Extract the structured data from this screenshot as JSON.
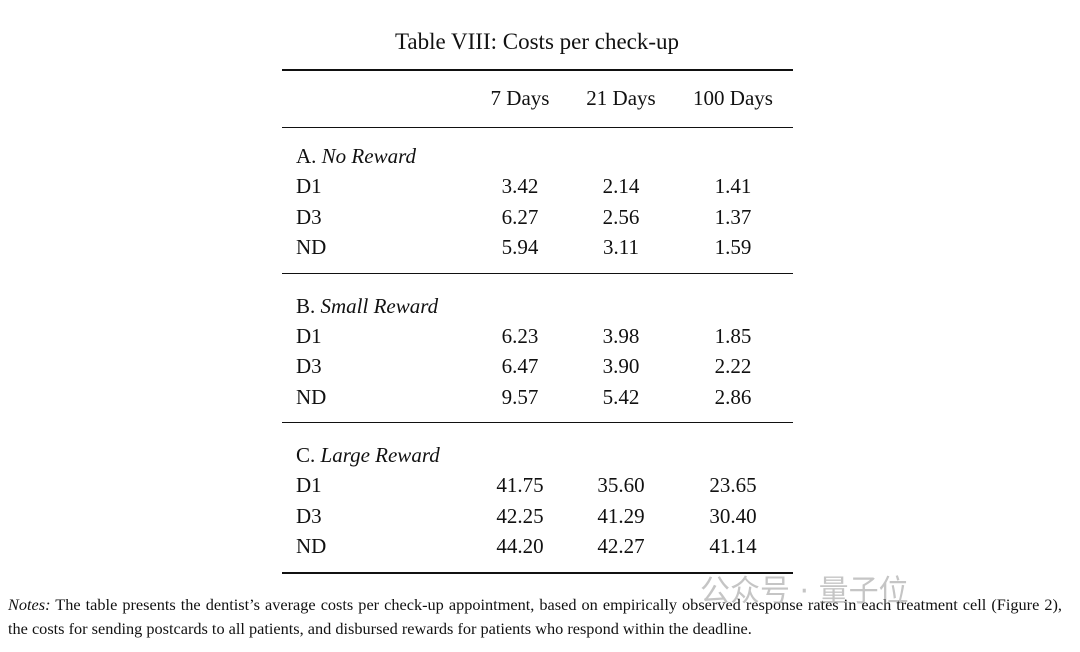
{
  "title": "Table VIII: Costs per check-up",
  "table": {
    "columns": [
      "7 Days",
      "21 Days",
      "100 Days"
    ],
    "sections": [
      {
        "letter": "A.",
        "name": "No Reward",
        "rows": [
          {
            "label": "D1",
            "values": [
              "3.42",
              "2.14",
              "1.41"
            ]
          },
          {
            "label": "D3",
            "values": [
              "6.27",
              "2.56",
              "1.37"
            ]
          },
          {
            "label": "ND",
            "values": [
              "5.94",
              "3.11",
              "1.59"
            ]
          }
        ]
      },
      {
        "letter": "B.",
        "name": "Small Reward",
        "rows": [
          {
            "label": "D1",
            "values": [
              "6.23",
              "3.98",
              "1.85"
            ]
          },
          {
            "label": "D3",
            "values": [
              "6.47",
              "3.90",
              "2.22"
            ]
          },
          {
            "label": "ND",
            "values": [
              "9.57",
              "5.42",
              "2.86"
            ]
          }
        ]
      },
      {
        "letter": "C.",
        "name": "Large Reward",
        "rows": [
          {
            "label": "D1",
            "values": [
              "41.75",
              "35.60",
              "23.65"
            ]
          },
          {
            "label": "D3",
            "values": [
              "42.25",
              "41.29",
              "30.40"
            ]
          },
          {
            "label": "ND",
            "values": [
              "44.20",
              "42.27",
              "41.14"
            ]
          }
        ]
      }
    ]
  },
  "notes": {
    "label": "Notes:",
    "text": "The table presents the dentist’s average costs per check-up appointment, based on empirically observed response rates in each treatment cell (Figure 2), the costs for sending postcards to all patients, and disbursed rewards for patients who respond within the deadline."
  },
  "watermark": "公众号 · 量子位"
}
